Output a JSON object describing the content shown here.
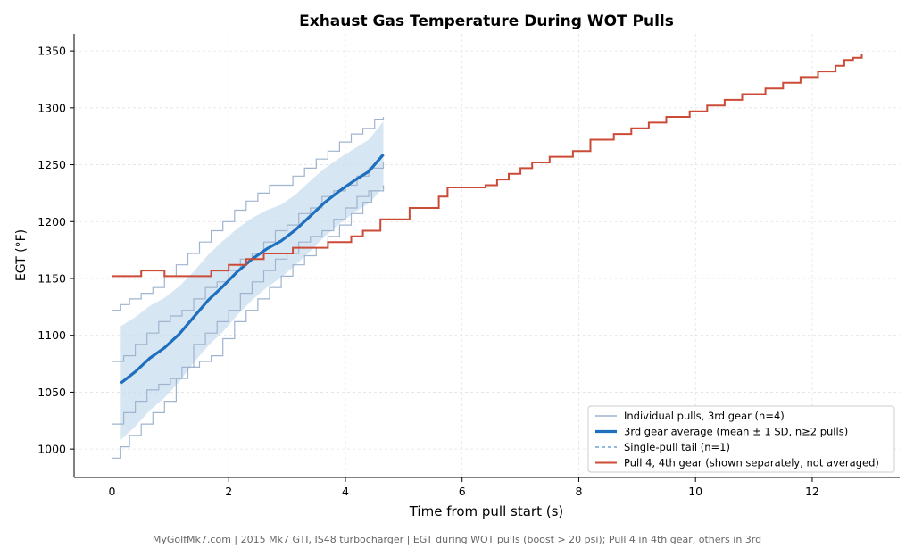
{
  "chart_data": {
    "type": "line",
    "title": "Exhaust Gas Temperature During WOT Pulls",
    "xlabel": "Time from pull start (s)",
    "ylabel": "EGT (°F)",
    "xlim": [
      -0.65,
      13.5
    ],
    "ylim": [
      975,
      1365
    ],
    "x_ticks": [
      0,
      2,
      4,
      6,
      8,
      10,
      12
    ],
    "y_ticks": [
      1000,
      1050,
      1100,
      1150,
      1200,
      1250,
      1300,
      1350
    ],
    "grid": true,
    "legend_position": "lower-right",
    "legend": [
      {
        "label": "Individual pulls, 3rd gear (n=4)",
        "style": "thin",
        "color": "#9fb4cf"
      },
      {
        "label": "3rd gear average (mean ± 1 SD, n≥2 pulls)",
        "style": "thick",
        "color": "#1f6fbf"
      },
      {
        "label": "Single-pull tail (n=1)",
        "style": "dashed",
        "color": "#6fa3d0"
      },
      {
        "label": "Pull 4, 4th gear (shown separately, not averaged)",
        "style": "solid",
        "color": "#cc4b37"
      }
    ],
    "footer": "MyGolfMk7.com | 2015 Mk7 GTI, IS48 turbocharger | EGT during WOT pulls (boost > 20 psi); Pull 4 in 4th gear, others in 3rd",
    "colors": {
      "individual": "#9fb4cf",
      "mean": "#1f6fbf",
      "band": "#c6dbee",
      "tail": "#6fa3d0",
      "gear4": "#cc4b37"
    },
    "series": [
      {
        "name": "Individual pulls, 3rd gear (n=4)",
        "role": "individual",
        "x": [
          0,
          0.15,
          0.3,
          0.5,
          0.7,
          0.9,
          1.1,
          1.3,
          1.5,
          1.7,
          1.9,
          2.1,
          2.3,
          2.5,
          2.7,
          2.9,
          3.1,
          3.3,
          3.5,
          3.7,
          3.9,
          4.1,
          4.3,
          4.5,
          4.65
        ],
        "y": [
          1122,
          1127,
          1132,
          1137,
          1142,
          1152,
          1162,
          1172,
          1182,
          1192,
          1200,
          1210,
          1218,
          1225,
          1232,
          1232,
          1240,
          1247,
          1255,
          1262,
          1270,
          1277,
          1282,
          1290,
          1292
        ]
      },
      {
        "name": "Individual pulls, 3rd gear (n=4)",
        "role": "individual",
        "x": [
          0,
          0.2,
          0.4,
          0.6,
          0.8,
          1.0,
          1.2,
          1.4,
          1.6,
          1.8,
          2.0,
          2.2,
          2.4,
          2.6,
          2.8,
          3.0,
          3.2,
          3.4,
          3.6,
          3.8,
          4.0,
          4.2,
          4.4,
          4.65
        ],
        "y": [
          1077,
          1082,
          1092,
          1102,
          1112,
          1117,
          1122,
          1132,
          1142,
          1147,
          1157,
          1167,
          1172,
          1182,
          1192,
          1197,
          1207,
          1212,
          1222,
          1227,
          1232,
          1240,
          1247,
          1252
        ]
      },
      {
        "name": "Individual pulls, 3rd gear (n=4)",
        "role": "individual",
        "x": [
          0,
          0.2,
          0.4,
          0.6,
          0.8,
          1.0,
          1.2,
          1.4,
          1.6,
          1.8,
          2.0,
          2.2,
          2.4,
          2.6,
          2.8,
          3.0,
          3.2,
          3.4,
          3.6,
          3.8,
          4.0,
          4.2,
          4.4,
          4.65
        ],
        "y": [
          1022,
          1032,
          1042,
          1052,
          1057,
          1062,
          1072,
          1092,
          1102,
          1112,
          1122,
          1137,
          1147,
          1157,
          1167,
          1172,
          1182,
          1187,
          1192,
          1202,
          1212,
          1222,
          1227,
          1232
        ]
      },
      {
        "name": "Individual pulls, 3rd gear (n=4)",
        "role": "individual",
        "x": [
          0,
          0.15,
          0.3,
          0.5,
          0.7,
          0.9,
          1.1,
          1.3,
          1.5,
          1.7,
          1.9,
          2.1,
          2.3,
          2.5,
          2.7,
          2.9,
          3.1,
          3.3,
          3.5,
          3.7,
          3.9,
          4.1,
          4.3,
          4.45,
          4.65
        ],
        "y": [
          992,
          1002,
          1012,
          1022,
          1032,
          1042,
          1062,
          1072,
          1077,
          1082,
          1097,
          1112,
          1122,
          1132,
          1142,
          1152,
          1162,
          1170,
          1177,
          1187,
          1197,
          1207,
          1217,
          1227,
          1232
        ]
      },
      {
        "name": "3rd gear average (mean ± 1 SD, n≥2 pulls)",
        "role": "mean",
        "x": [
          0.15,
          0.4,
          0.65,
          0.9,
          1.15,
          1.4,
          1.65,
          1.9,
          2.15,
          2.4,
          2.65,
          2.9,
          3.15,
          3.4,
          3.65,
          3.9,
          4.15,
          4.4,
          4.65
        ],
        "y": [
          1058,
          1068,
          1080,
          1089,
          1101,
          1116,
          1131,
          1143,
          1156,
          1167,
          1176,
          1183,
          1193,
          1205,
          1217,
          1227,
          1236,
          1244,
          1259
        ],
        "sd": [
          50,
          48,
          46,
          44,
          42,
          40,
          40,
          40,
          38,
          36,
          34,
          32,
          31,
          31,
          30,
          29,
          28,
          28,
          29
        ]
      },
      {
        "name": "Pull 4, 4th gear (shown separately, not averaged)",
        "role": "gear4",
        "x": [
          0,
          0.5,
          0.9,
          1.4,
          1.7,
          2.0,
          2.3,
          2.6,
          2.8,
          3.1,
          3.4,
          3.7,
          3.9,
          4.1,
          4.3,
          4.6,
          5.1,
          5.6,
          5.75,
          6.4,
          6.6,
          6.8,
          7.0,
          7.2,
          7.5,
          7.9,
          8.2,
          8.6,
          8.9,
          9.2,
          9.5,
          9.9,
          10.2,
          10.5,
          10.8,
          11.2,
          11.5,
          11.8,
          12.1,
          12.4,
          12.55,
          12.7,
          12.85
        ],
        "y": [
          1152,
          1157,
          1152,
          1152,
          1157,
          1162,
          1167,
          1172,
          1172,
          1177,
          1177,
          1182,
          1182,
          1187,
          1192,
          1202,
          1212,
          1222,
          1230,
          1232,
          1237,
          1242,
          1247,
          1252,
          1257,
          1262,
          1272,
          1277,
          1282,
          1287,
          1292,
          1297,
          1302,
          1307,
          1312,
          1317,
          1322,
          1327,
          1332,
          1337,
          1342,
          1344,
          1347
        ]
      }
    ]
  }
}
